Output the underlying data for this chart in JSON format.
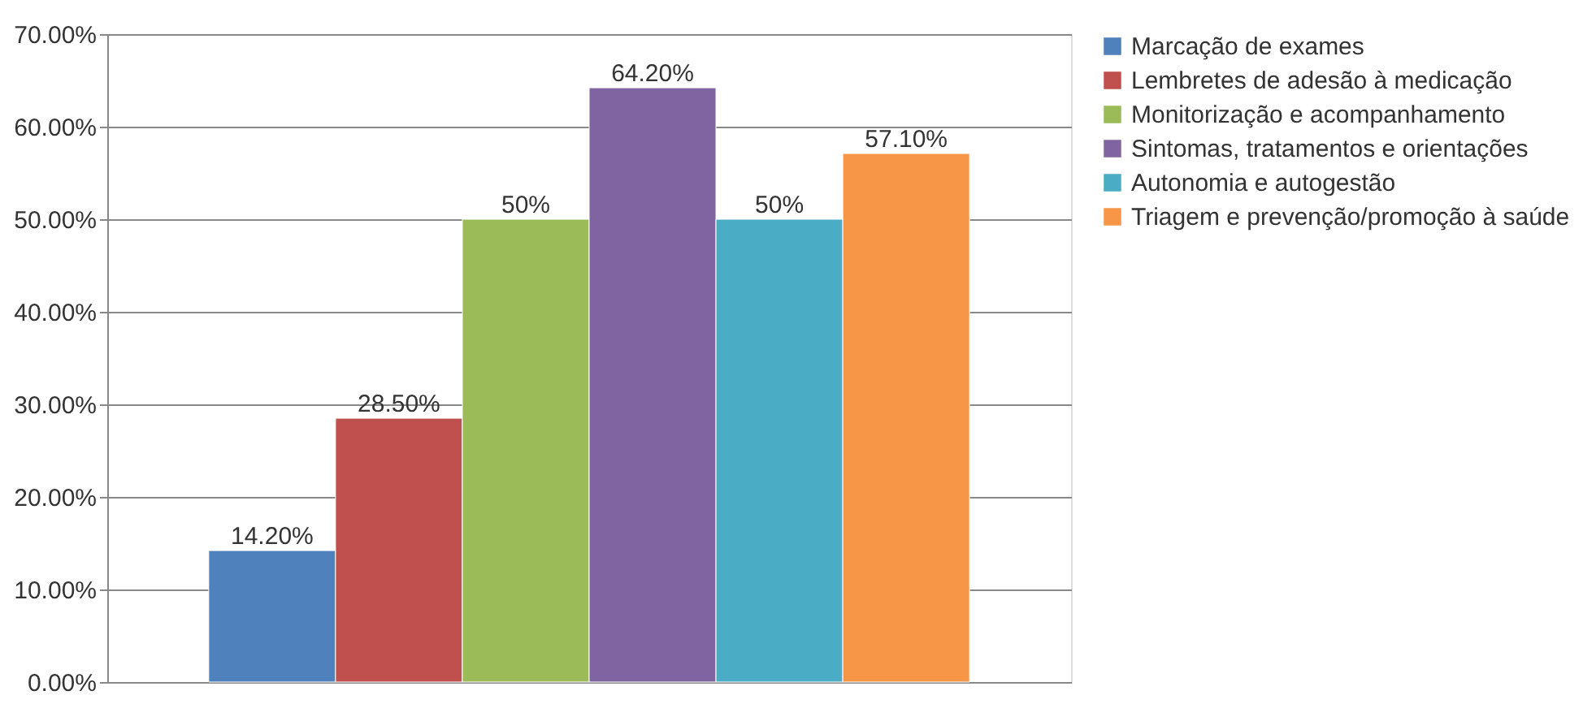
{
  "chart_data": {
    "type": "bar",
    "categories": [
      null
    ],
    "series": [
      {
        "name": "Marcação de exames",
        "color": "#4f81bd",
        "values": [
          14.2
        ],
        "value_labels": [
          "14.20%"
        ]
      },
      {
        "name": "Lembretes de adesão à medicação",
        "color": "#c0504d",
        "values": [
          28.5
        ],
        "value_labels": [
          "28.50%"
        ]
      },
      {
        "name": "Monitorização e acompanhamento",
        "color": "#9bbb59",
        "values": [
          50
        ],
        "value_labels": [
          "50%"
        ]
      },
      {
        "name": "Sintomas, tratamentos e orientações",
        "color": "#8064a2",
        "values": [
          64.2
        ],
        "value_labels": [
          "64.20%"
        ]
      },
      {
        "name": "Autonomia e autogestão",
        "color": "#4bacc6",
        "values": [
          50
        ],
        "value_labels": [
          "50%"
        ]
      },
      {
        "name": "Triagem e prevenção/promoção à saúde",
        "color": "#f79646",
        "values": [
          57.1
        ],
        "value_labels": [
          "57.10%"
        ]
      }
    ],
    "ylim": [
      0,
      70
    ],
    "yticks": [
      {
        "value": 0,
        "label": "0.00%"
      },
      {
        "value": 10,
        "label": "10.00%"
      },
      {
        "value": 20,
        "label": "20.00%"
      },
      {
        "value": 30,
        "label": "30.00%"
      },
      {
        "value": 40,
        "label": "40.00%"
      },
      {
        "value": 50,
        "label": "50.00%"
      },
      {
        "value": 60,
        "label": "60.00%"
      },
      {
        "value": 70,
        "label": "70.00%"
      }
    ],
    "grid": "y",
    "legend": "right",
    "tick_labels": "y"
  }
}
